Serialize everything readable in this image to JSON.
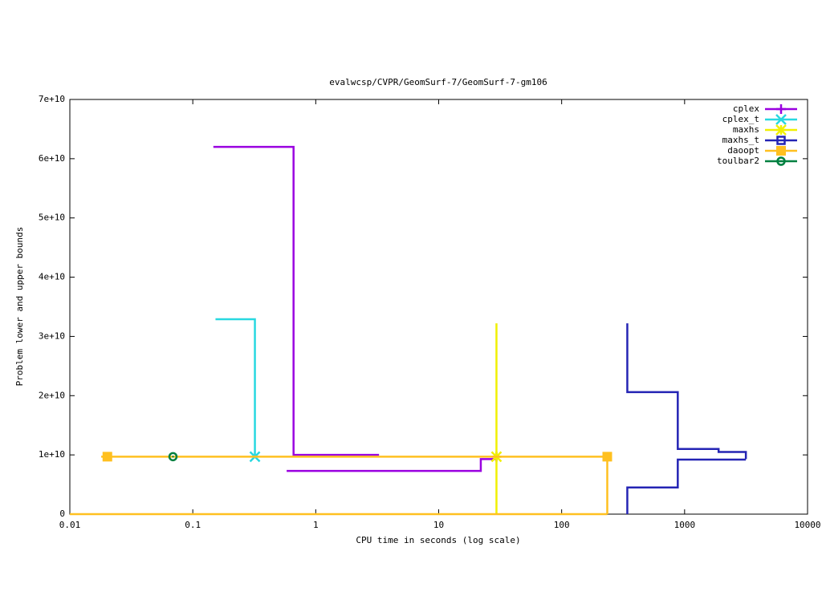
{
  "chart_data": {
    "type": "line",
    "title": "evalwcsp/CVPR/GeomSurf-7/GeomSurf-7-gm106",
    "x_label": "CPU time in seconds (log scale)",
    "y_label": "Problem lower and upper bounds",
    "xlog": true,
    "xlim": [
      0.01,
      10000
    ],
    "xticks": [
      0.01,
      0.1,
      1,
      10,
      100,
      1000,
      10000
    ],
    "ylim": [
      0,
      70000000000
    ],
    "yticks": [
      0,
      {
        "value": 10000000000,
        "label": "1e+10"
      },
      {
        "value": 20000000000,
        "label": "2e+10"
      },
      {
        "value": 30000000000,
        "label": "3e+10"
      },
      {
        "value": 40000000000,
        "label": "4e+10"
      },
      {
        "value": 50000000000,
        "label": "5e+10"
      },
      {
        "value": 60000000000,
        "label": "6e+10"
      },
      {
        "value": 70000000000,
        "label": "7e+10"
      }
    ],
    "legend": "top right",
    "series": [
      {
        "name": "cplex",
        "color": "#9a00e0",
        "marker": "plus",
        "x": [
          0.147,
          0.66,
          0.66,
          3.27,
          null,
          0.58,
          22,
          22,
          29.5,
          29.5
        ],
        "values": [
          62000000000,
          62000000000,
          10000000000,
          10000000000,
          null,
          7300000000,
          7300000000,
          9300000000,
          9300000000,
          9700000000
        ],
        "points": {
          "x": [
            29.5
          ],
          "values": [
            9700000000
          ]
        }
      },
      {
        "name": "cplex_t",
        "color": "#28d8e0",
        "marker": "cross",
        "x": [
          0.153,
          0.32,
          0.32
        ],
        "values": [
          32900000000,
          32900000000,
          9700000000
        ],
        "points": {
          "x": [
            0.32
          ],
          "values": [
            9700000000
          ]
        }
      },
      {
        "name": "maxhs",
        "color": "#f0f000",
        "marker": "star",
        "x": [
          29.5,
          29.5
        ],
        "values": [
          0,
          32200000000
        ],
        "points": {
          "x": [
            29.5
          ],
          "values": [
            9700000000
          ]
        }
      },
      {
        "name": "maxhs_t",
        "color": "#2424b4",
        "marker": "open-square",
        "x": [
          342,
          342,
          880,
          880,
          1890,
          1890,
          3150,
          3150,
          null,
          342,
          342,
          880,
          880,
          3150
        ],
        "values": [
          32200000000,
          20600000000,
          20600000000,
          11000000000,
          11000000000,
          10500000000,
          10500000000,
          9300000000,
          null,
          0,
          4500000000,
          4500000000,
          9200000000,
          9200000000
        ]
      },
      {
        "name": "daoopt",
        "color": "#ffc020",
        "marker": "filled-square",
        "x": [
          0.018,
          235,
          235,
          null,
          0.01,
          235
        ],
        "values": [
          9700000000,
          9700000000,
          0,
          null,
          0,
          0
        ],
        "points": {
          "x": [
            0.0202,
            235
          ],
          "values": [
            9700000000,
            9700000000
          ]
        }
      },
      {
        "name": "toulbar2",
        "color": "#008040",
        "marker": "dot-circle",
        "points": {
          "x": [
            0.069
          ],
          "values": [
            9700000000
          ]
        }
      }
    ]
  }
}
